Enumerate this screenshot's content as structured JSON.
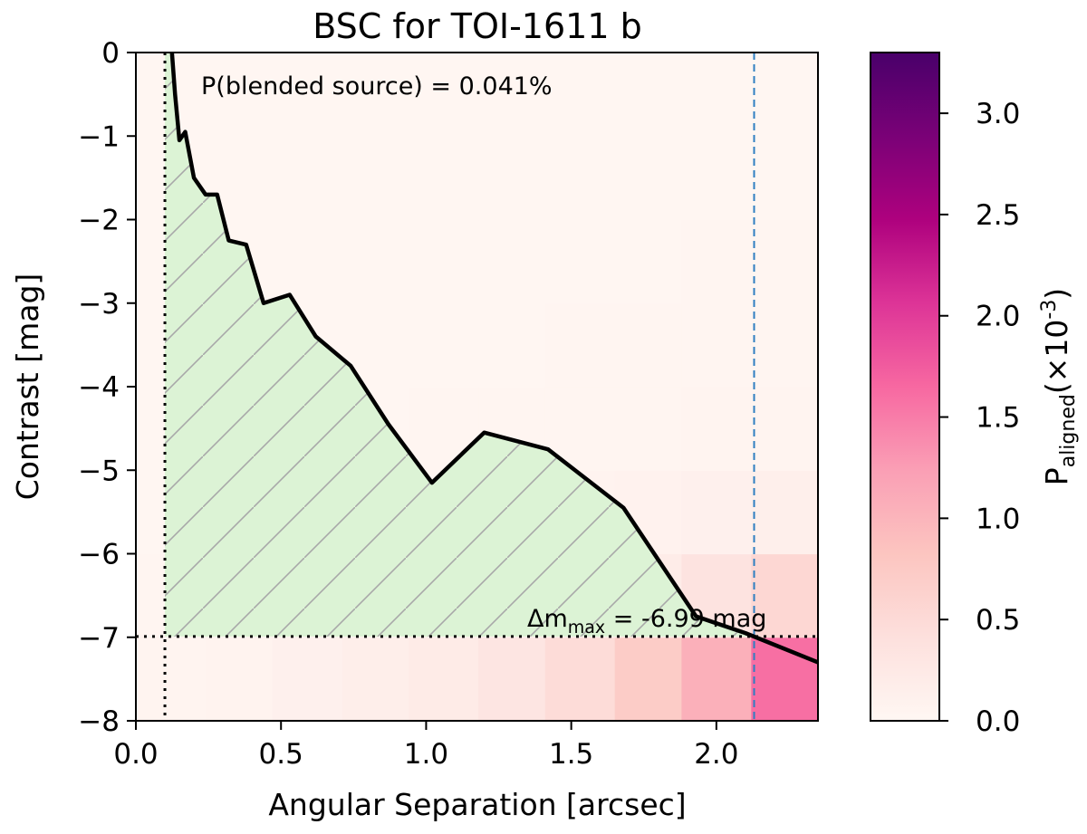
{
  "chart_data": {
    "type": "heatmap",
    "title": "BSC for TOI-1611 b",
    "xlabel": "Angular Separation [arcsec]",
    "ylabel": "Contrast [mag]",
    "xlim": [
      0.0,
      2.35
    ],
    "ylim": [
      -8,
      0
    ],
    "x_ticks": [
      0.0,
      0.5,
      1.0,
      1.5,
      2.0
    ],
    "x_tick_labels": [
      "0.0",
      "0.5",
      "1.0",
      "1.5",
      "2.0"
    ],
    "y_ticks": [
      0,
      -1,
      -2,
      -3,
      -4,
      -5,
      -6,
      -7,
      -8
    ],
    "y_tick_labels": [
      "0",
      "−1",
      "−2",
      "−3",
      "−4",
      "−5",
      "−6",
      "−7",
      "−8"
    ],
    "annotation_probability": "P(blended source) = 0.041%",
    "dm_max": {
      "value": -6.99,
      "label_prefix": "Δm",
      "label_sub": "max",
      "label_suffix": " =  -6.99 mag"
    },
    "inner_working_angle": 0.1,
    "outer_separation": 2.13,
    "contrast_curve": {
      "x": [
        0.12,
        0.135,
        0.15,
        0.17,
        0.2,
        0.24,
        0.28,
        0.32,
        0.38,
        0.44,
        0.53,
        0.62,
        0.74,
        0.87,
        1.02,
        1.2,
        1.42,
        1.68,
        1.93,
        2.1,
        2.35
      ],
      "y": [
        0.2,
        -0.5,
        -1.05,
        -0.95,
        -1.5,
        -1.7,
        -1.7,
        -2.25,
        -2.3,
        -3.0,
        -2.9,
        -3.4,
        -3.75,
        -4.45,
        -5.15,
        -4.55,
        -4.75,
        -5.45,
        -6.75,
        -6.95,
        -7.3
      ]
    },
    "heatmap": {
      "x_edges": [
        0.0,
        0.24,
        0.47,
        0.71,
        0.94,
        1.18,
        1.41,
        1.65,
        1.88,
        2.12,
        2.35
      ],
      "y_edges": [
        -8,
        -7,
        -6,
        -5,
        -4,
        -3,
        -2,
        -1,
        0
      ],
      "values_note": "rows from -8 (bottom) to 0 (top), P_aligned x10^-3",
      "values": [
        [
          0.06,
          0.08,
          0.12,
          0.16,
          0.22,
          0.32,
          0.48,
          0.72,
          1.05,
          1.6
        ],
        [
          0.03,
          0.04,
          0.05,
          0.06,
          0.08,
          0.1,
          0.14,
          0.2,
          0.35,
          0.55
        ],
        [
          0.02,
          0.02,
          0.03,
          0.03,
          0.04,
          0.05,
          0.07,
          0.09,
          0.12,
          0.15
        ],
        [
          0.02,
          0.02,
          0.02,
          0.02,
          0.03,
          0.03,
          0.04,
          0.04,
          0.05,
          0.06
        ],
        [
          0.01,
          0.01,
          0.02,
          0.02,
          0.02,
          0.02,
          0.03,
          0.03,
          0.03,
          0.04
        ],
        [
          0.01,
          0.01,
          0.01,
          0.01,
          0.02,
          0.02,
          0.02,
          0.02,
          0.03,
          0.03
        ],
        [
          0.01,
          0.01,
          0.01,
          0.01,
          0.01,
          0.02,
          0.02,
          0.02,
          0.02,
          0.02
        ],
        [
          0.01,
          0.01,
          0.01,
          0.01,
          0.01,
          0.01,
          0.01,
          0.02,
          0.02,
          0.02
        ]
      ]
    },
    "colorbar": {
      "label_prefix": "P",
      "label_sub": "aligned",
      "label_unit": "(×10",
      "label_exp": "-3",
      "label_close": ")",
      "vmin": 0.0,
      "vmax": 3.3,
      "ticks": [
        0.0,
        0.5,
        1.0,
        1.5,
        2.0,
        2.5,
        3.0
      ],
      "tick_labels": [
        "0.0",
        "0.5",
        "1.0",
        "1.5",
        "2.0",
        "2.5",
        "3.0"
      ]
    },
    "colors": {
      "fill": "#dcf3d5",
      "hatch": "#a8a8a8",
      "curve": "#000000",
      "dashed_line": "#2f7fc1",
      "cmap": [
        "#fff7f3",
        "#fde0dd",
        "#fcc5c0",
        "#fa9fb5",
        "#f768a1",
        "#dd3497",
        "#ae017e",
        "#7a0177",
        "#49006a"
      ]
    }
  }
}
